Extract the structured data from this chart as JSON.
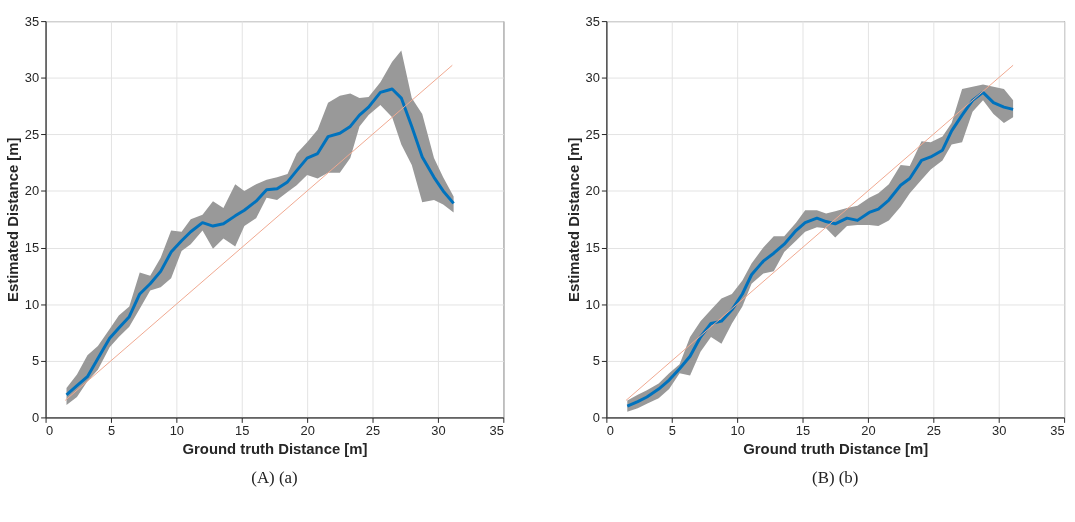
{
  "chart_data": [
    {
      "type": "line",
      "xlabel": "Ground truth Distance [m]",
      "ylabel": "Estimated Distance [m]",
      "annotations": [
        "(A) (a)"
      ],
      "xlim": [
        0,
        35
      ],
      "ylim": [
        0,
        35
      ],
      "xticks": [
        0,
        5,
        10,
        15,
        20,
        25,
        30,
        35
      ],
      "yticks": [
        0,
        5,
        10,
        15,
        20,
        25,
        30,
        35
      ],
      "grid": true,
      "series": [
        {
          "color": "#0072bd",
          "x": [
            1.6,
            2.4,
            3.2,
            4.0,
            4.9,
            5.6,
            6.4,
            7.2,
            8.0,
            8.8,
            9.6,
            10.4,
            11.1,
            12.0,
            12.8,
            13.6,
            14.5,
            15.2,
            16.1,
            16.9,
            17.7,
            18.5,
            19.2,
            20.0,
            20.8,
            21.6,
            22.5,
            23.3,
            24.0,
            24.7,
            25.6,
            26.5,
            27.2,
            28.0,
            28.8,
            29.7,
            30.4,
            31.2
          ],
          "values": [
            2.0,
            2.8,
            3.6,
            5.2,
            7.0,
            7.9,
            8.9,
            10.9,
            11.8,
            12.9,
            14.6,
            15.6,
            16.4,
            17.2,
            16.9,
            17.1,
            17.8,
            18.3,
            19.1,
            20.1,
            20.2,
            20.8,
            21.8,
            22.9,
            23.3,
            24.8,
            25.1,
            25.7,
            26.7,
            27.4,
            28.7,
            29.0,
            28.2,
            25.7,
            23.0,
            21.2,
            20.0,
            18.9
          ],
          "upper": [
            2.6,
            3.8,
            5.5,
            6.3,
            7.8,
            9.0,
            9.8,
            12.8,
            12.5,
            14.1,
            16.5,
            16.4,
            17.5,
            17.9,
            19.1,
            18.5,
            20.6,
            20.0,
            20.6,
            21.0,
            21.2,
            21.5,
            23.3,
            24.3,
            25.4,
            27.8,
            28.4,
            28.6,
            28.2,
            28.3,
            29.6,
            31.4,
            32.4,
            28.2,
            26.8,
            22.9,
            21.2,
            19.5
          ],
          "lower": [
            1.1,
            1.8,
            3.2,
            4.2,
            6.2,
            7.1,
            8.0,
            9.6,
            11.2,
            11.5,
            12.3,
            14.7,
            15.3,
            16.5,
            14.9,
            15.8,
            15.1,
            16.9,
            17.6,
            19.4,
            19.2,
            19.9,
            20.5,
            21.4,
            21.1,
            21.6,
            21.6,
            22.9,
            25.7,
            26.7,
            27.6,
            26.5,
            24.1,
            22.3,
            19.0,
            19.2,
            18.8,
            18.1
          ]
        },
        {
          "type": "line",
          "color": "#f0a890",
          "x": [
            1.5,
            31.1
          ],
          "values": [
            1.5,
            31.1
          ]
        }
      ]
    },
    {
      "type": "line",
      "xlabel": "Ground truth Distance [m]",
      "ylabel": "Estimated Distance [m]",
      "annotations": [
        "(B) (b)"
      ],
      "xlim": [
        0,
        35
      ],
      "ylim": [
        0,
        35
      ],
      "xticks": [
        0,
        5,
        10,
        15,
        20,
        25,
        30,
        35
      ],
      "yticks": [
        0,
        5,
        10,
        15,
        20,
        25,
        30,
        35
      ],
      "grid": true,
      "series": [
        {
          "color": "#0072bd",
          "x": [
            1.6,
            2.4,
            3.1,
            4.0,
            4.8,
            5.6,
            6.4,
            7.2,
            8.0,
            8.8,
            9.6,
            10.4,
            11.1,
            12.0,
            12.8,
            13.6,
            14.5,
            15.2,
            16.1,
            16.8,
            17.5,
            18.4,
            19.2,
            20.1,
            20.8,
            21.6,
            22.5,
            23.2,
            24.1,
            24.8,
            25.7,
            26.4,
            27.2,
            28.0,
            28.8,
            29.6,
            30.4,
            31.1
          ],
          "values": [
            1.0,
            1.4,
            1.8,
            2.5,
            3.3,
            4.3,
            5.4,
            7.1,
            8.3,
            8.5,
            9.5,
            10.9,
            12.6,
            13.8,
            14.5,
            15.3,
            16.5,
            17.2,
            17.6,
            17.3,
            17.1,
            17.6,
            17.4,
            18.1,
            18.4,
            19.2,
            20.5,
            21.1,
            22.7,
            23.0,
            23.6,
            25.3,
            26.7,
            28.0,
            28.7,
            27.8,
            27.4,
            27.2
          ],
          "upper": [
            1.5,
            2.0,
            2.4,
            3.0,
            3.9,
            4.7,
            7.1,
            8.5,
            9.5,
            10.5,
            10.9,
            12.1,
            13.6,
            15.0,
            16.0,
            16.0,
            17.2,
            18.3,
            18.3,
            18.0,
            18.2,
            18.5,
            18.7,
            19.4,
            19.8,
            20.6,
            22.3,
            22.2,
            24.4,
            24.3,
            24.8,
            26.0,
            29.0,
            29.2,
            29.4,
            29.2,
            29.0,
            28.0
          ],
          "lower": [
            0.5,
            0.8,
            1.2,
            1.7,
            2.5,
            3.9,
            3.7,
            5.8,
            7.1,
            6.5,
            8.3,
            9.8,
            11.8,
            12.7,
            12.9,
            14.6,
            15.6,
            16.4,
            16.8,
            16.7,
            15.9,
            16.9,
            17.0,
            17.0,
            16.9,
            17.4,
            18.6,
            19.8,
            21.0,
            21.9,
            22.7,
            24.1,
            24.3,
            27.0,
            28.0,
            26.8,
            26.0,
            26.5
          ]
        },
        {
          "type": "line",
          "color": "#f0a890",
          "x": [
            1.5,
            31.1
          ],
          "values": [
            1.5,
            31.1
          ]
        }
      ]
    }
  ]
}
